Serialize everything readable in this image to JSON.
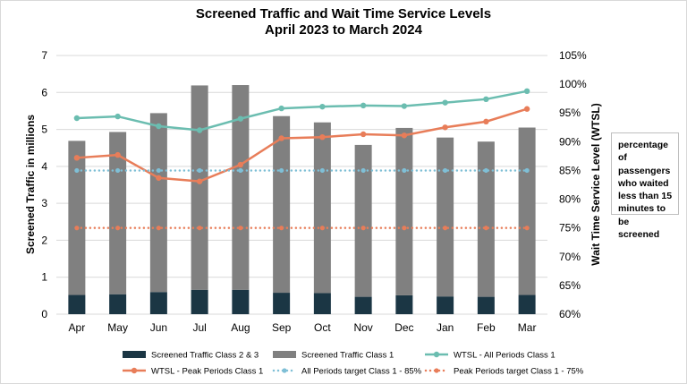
{
  "chart_data": {
    "type": "bar+line",
    "title": [
      "Screened Traffic and Wait Time Service Levels",
      "April 2023 to March 2024"
    ],
    "categories": [
      "Apr",
      "May",
      "Jun",
      "Jul",
      "Aug",
      "Sep",
      "Oct",
      "Nov",
      "Dec",
      "Jan",
      "Feb",
      "Mar"
    ],
    "ylabel": "Screened Traffic in millions",
    "y2label": "Wait Time Service Level (WTSL)",
    "ylim": [
      0,
      7
    ],
    "yticks": [
      "0",
      "1",
      "2",
      "3",
      "4",
      "5",
      "6",
      "7"
    ],
    "y2lim": [
      60,
      105
    ],
    "y2ticks": [
      "60%",
      "65%",
      "70%",
      "75%",
      "80%",
      "85%",
      "90%",
      "95%",
      "100%",
      "105%"
    ],
    "bars": [
      {
        "name": "Screened Traffic Class 2 & 3",
        "color": "#1b3644",
        "values": [
          0.52,
          0.54,
          0.6,
          0.66,
          0.66,
          0.58,
          0.57,
          0.47,
          0.51,
          0.48,
          0.47,
          0.52
        ]
      },
      {
        "name": "Screened Traffic Class 1",
        "color": "#808080",
        "values": [
          4.17,
          4.39,
          4.84,
          5.53,
          5.54,
          4.78,
          4.62,
          4.11,
          4.53,
          4.3,
          4.2,
          4.53
        ]
      }
    ],
    "lines": [
      {
        "name": "WTSL - All Periods Class 1",
        "color": "#6bbdb0",
        "style": "solid",
        "values": [
          94.1,
          94.4,
          92.7,
          92.0,
          94.0,
          95.8,
          96.1,
          96.3,
          96.2,
          96.8,
          97.4,
          98.8
        ]
      },
      {
        "name": "WTSL - Peak Periods Class 1",
        "color": "#e87d59",
        "style": "solid",
        "values": [
          87.2,
          87.7,
          83.7,
          83.1,
          86.0,
          90.6,
          90.8,
          91.3,
          91.1,
          92.5,
          93.5,
          95.7
        ]
      },
      {
        "name": "All Periods target Class 1 - 85%",
        "color": "#7fbfd6",
        "style": "dotted",
        "values": [
          85,
          85,
          85,
          85,
          85,
          85,
          85,
          85,
          85,
          85,
          85,
          85
        ]
      },
      {
        "name": "Peak Periods target Class 1 - 75%",
        "color": "#e87d59",
        "style": "dotted",
        "values": [
          75,
          75,
          75,
          75,
          75,
          75,
          75,
          75,
          75,
          75,
          75,
          75
        ]
      }
    ],
    "annotation": "percentage of passengers who waited less than 15 minutes to be screened"
  }
}
